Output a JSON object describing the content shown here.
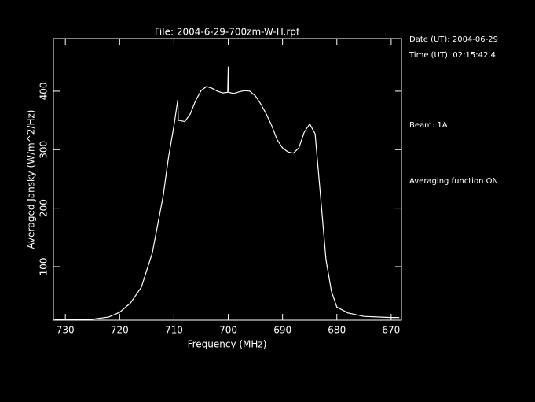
{
  "chart_data": {
    "type": "line",
    "title": "File: 2004-6-29-700zm-W-H.rpf",
    "x_label": "Frequency (MHz)",
    "y_label": "Averaged Jansky (W/m^2/Hz)",
    "info": [
      "Date (UT): 2004-06-29",
      "Time (UT): 02:15:42.4",
      "Beam: 1A",
      "Averaging function ON"
    ],
    "xlim": [
      732.2,
      668.1
    ],
    "ylim": [
      8.5,
      490
    ],
    "xticks": [
      730,
      720,
      710,
      700,
      690,
      680,
      670
    ],
    "yticks": [
      100,
      200,
      300,
      400
    ],
    "color": "#ffffff",
    "background": "#000000",
    "x": [
      732,
      725,
      722,
      720,
      718,
      716,
      714,
      712,
      711,
      710,
      709.3,
      709.2,
      709,
      708,
      707,
      706,
      705,
      704,
      703,
      702,
      701,
      700.1,
      700,
      699.9,
      699,
      698,
      697,
      696,
      695,
      694,
      693,
      692,
      691,
      690,
      689,
      688,
      687,
      686,
      685,
      684,
      683,
      682,
      681,
      680,
      678,
      675,
      670,
      668.5
    ],
    "values": [
      10,
      10,
      14,
      22,
      38,
      65,
      123,
      220,
      287,
      341,
      385,
      350,
      350,
      348,
      361,
      384,
      401,
      408,
      405,
      400,
      397,
      398,
      442,
      398,
      396,
      399,
      401,
      400,
      392,
      378,
      361,
      341,
      317,
      303,
      296,
      294,
      303,
      330,
      344,
      327,
      220,
      112,
      58,
      31,
      21,
      15,
      13,
      13
    ]
  }
}
